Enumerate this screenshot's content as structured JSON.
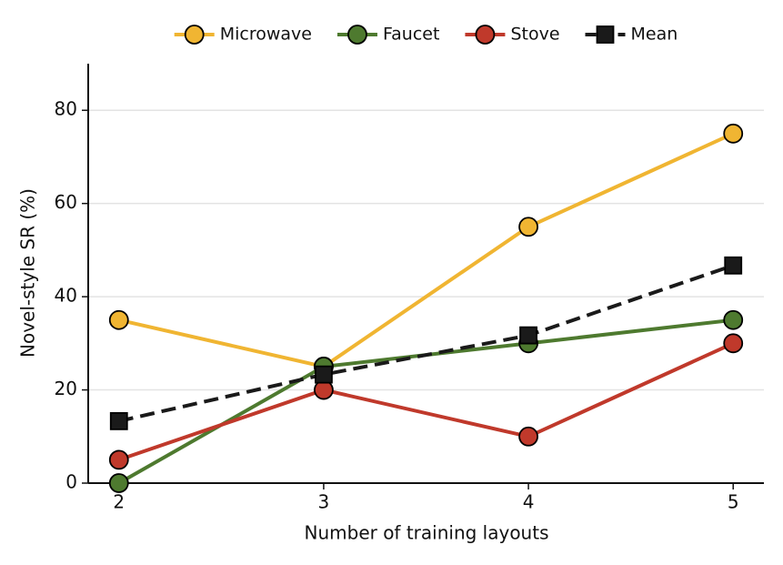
{
  "chart_data": {
    "type": "line",
    "xlabel": "Number of training layouts",
    "ylabel": "Novel-style SR (%)",
    "x": [
      2,
      3,
      4,
      5
    ],
    "xlim": [
      1.85,
      5.15
    ],
    "xticks": [
      2,
      3,
      4,
      5
    ],
    "ylim": [
      0,
      90
    ],
    "yticks": [
      0,
      20,
      40,
      60,
      80
    ],
    "grid": true,
    "legend": "top",
    "series": [
      {
        "name": "Microwave",
        "color": "#f0b532",
        "marker": "circle",
        "linestyle": "solid",
        "values": [
          35,
          25,
          55,
          75
        ]
      },
      {
        "name": "Faucet",
        "color": "#4e7a2f",
        "marker": "circle",
        "linestyle": "solid",
        "values": [
          0,
          25,
          30,
          35
        ]
      },
      {
        "name": "Stove",
        "color": "#c0392b",
        "marker": "circle",
        "linestyle": "solid",
        "values": [
          5,
          20,
          10,
          30
        ]
      },
      {
        "name": "Mean",
        "color": "#1a1a1a",
        "marker": "square",
        "linestyle": "dashed",
        "values": [
          13.3,
          23.3,
          31.7,
          46.7
        ]
      }
    ]
  }
}
